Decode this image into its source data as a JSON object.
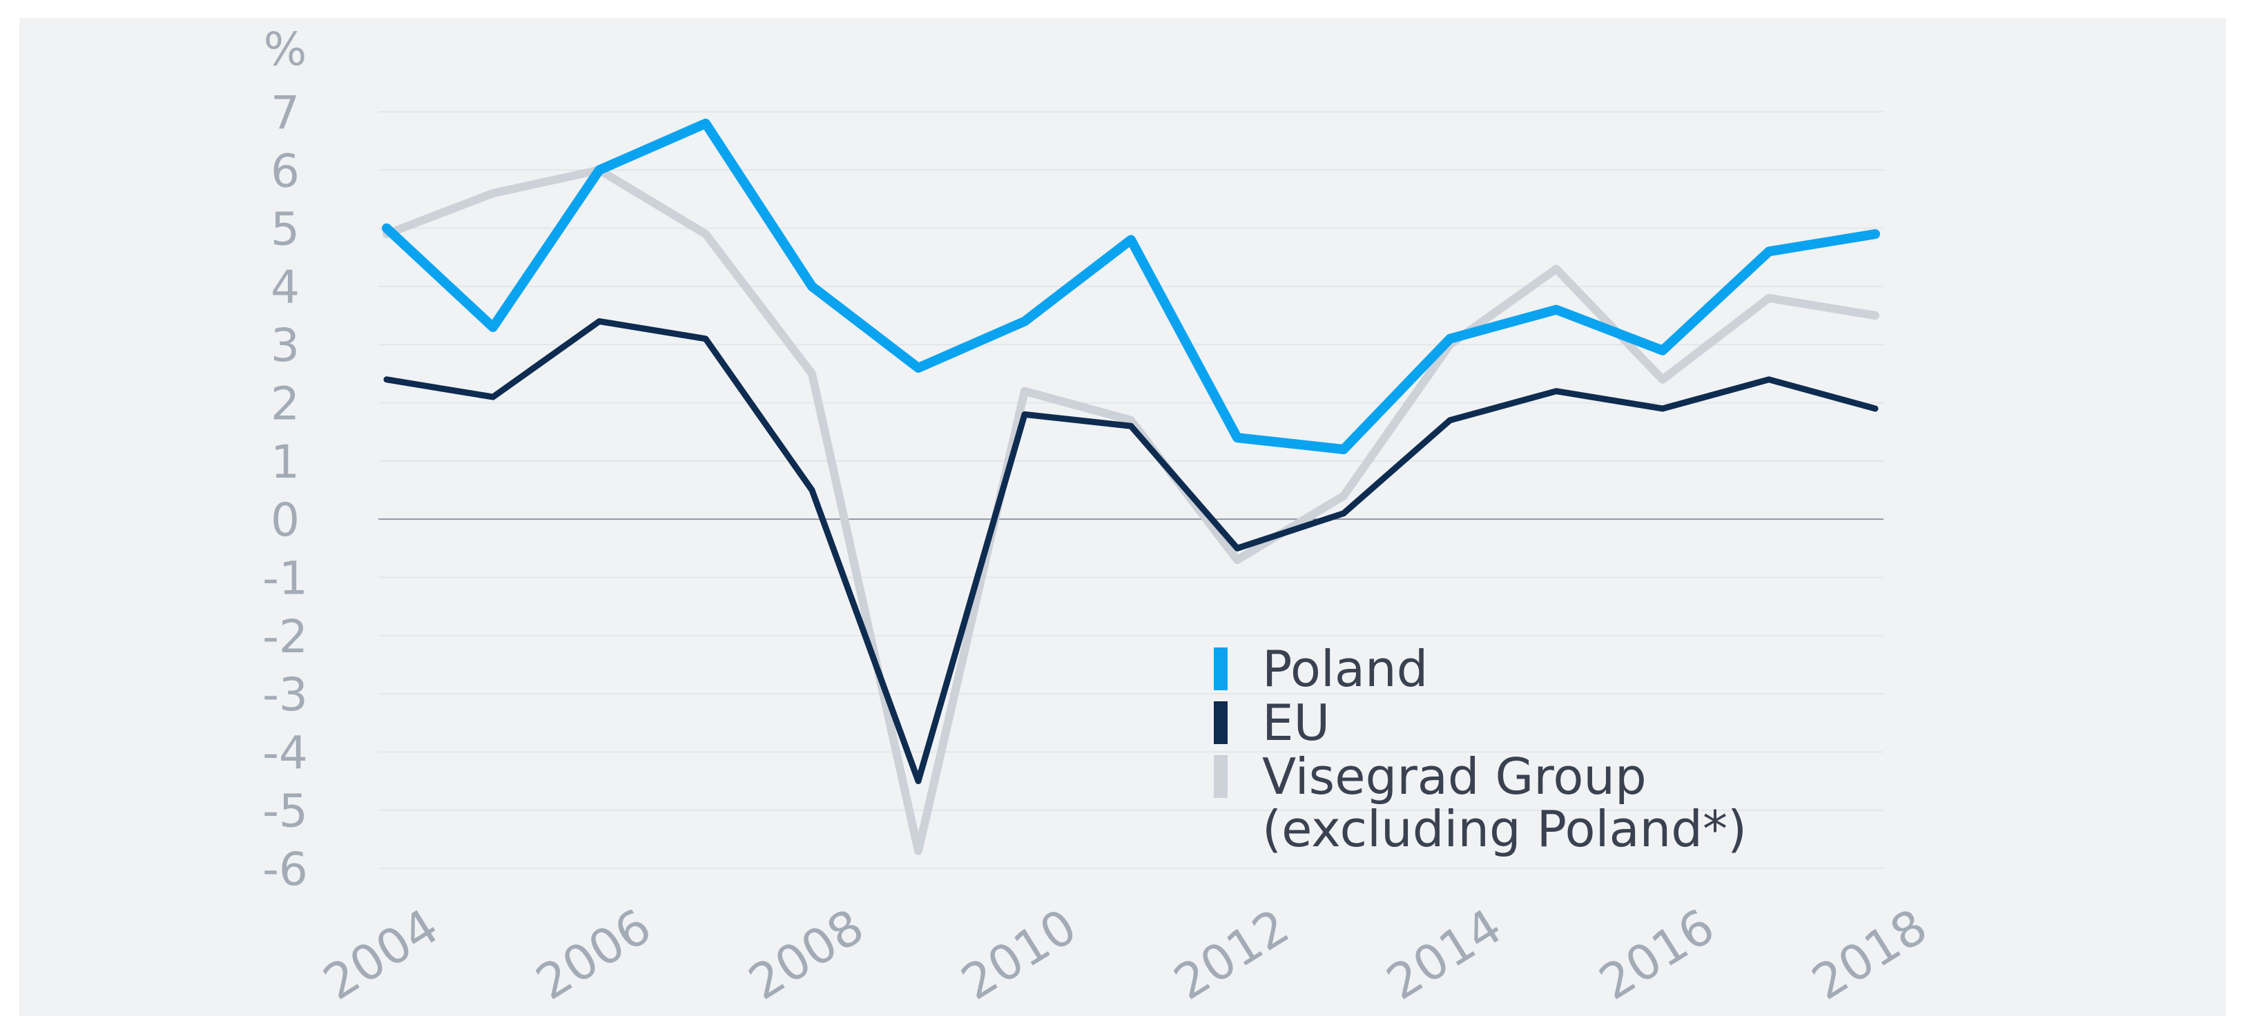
{
  "chart_data": {
    "type": "line",
    "title": "",
    "xlabel": "",
    "ylabel": "%",
    "ylim": [
      -6,
      7
    ],
    "yticks": [
      7,
      6,
      5,
      4,
      3,
      2,
      1,
      0,
      -1,
      -2,
      -3,
      -4,
      -5,
      -6
    ],
    "xlim": [
      2004,
      2018
    ],
    "xtick_labels": [
      "2004",
      "2006",
      "2008",
      "2010",
      "2012",
      "2014",
      "2016",
      "2018"
    ],
    "x": [
      2004,
      2005,
      2006,
      2007,
      2008,
      2009,
      2010,
      2011,
      2012,
      2013,
      2014,
      2015,
      2016,
      2017,
      2018
    ],
    "series": [
      {
        "name": "Visegrad Group",
        "name_line2": "(excluding Poland*)",
        "color": "#cdd1d8",
        "values": [
          4.9,
          5.6,
          6.0,
          4.9,
          2.5,
          -5.7,
          2.2,
          1.7,
          -0.7,
          0.4,
          3.0,
          4.3,
          2.4,
          3.8,
          3.5
        ]
      },
      {
        "name": "EU",
        "color": "#0e2b50",
        "values": [
          2.4,
          2.1,
          3.4,
          3.1,
          0.5,
          -4.5,
          1.8,
          1.6,
          -0.5,
          0.1,
          1.7,
          2.2,
          1.9,
          2.4,
          1.9
        ]
      },
      {
        "name": "Poland",
        "color": "#0aa3f0",
        "values": [
          5.0,
          3.3,
          6.0,
          6.8,
          4.0,
          2.6,
          3.4,
          4.8,
          1.4,
          1.2,
          3.1,
          3.6,
          2.9,
          4.6,
          4.9
        ]
      }
    ],
    "legend_order": [
      "Poland",
      "EU",
      "Visegrad Group"
    ],
    "legend_position": "bottom-center",
    "grid": true,
    "zero_line": true
  }
}
